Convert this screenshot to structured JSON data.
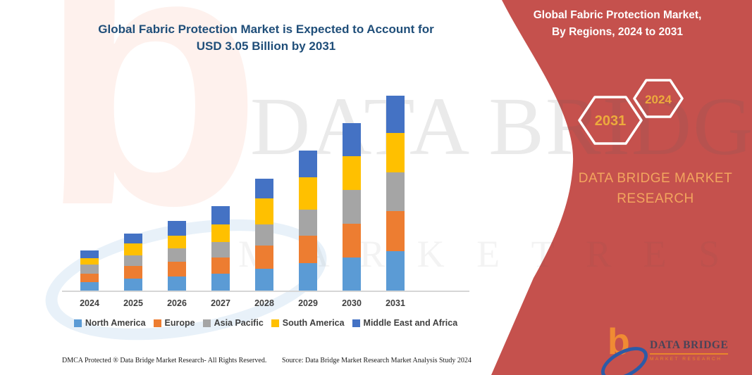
{
  "title": {
    "line1": "Global Fabric Protection Market is Expected to Account for",
    "line2": "USD 3.05 Billion by 2031",
    "color": "#1F4E79"
  },
  "chart_data": {
    "type": "bar",
    "stacked": true,
    "unit": "USD Billion",
    "title": "Global Fabric Protection Market is Expected to Account for USD 3.05 Billion by 2031",
    "xlabel": "",
    "ylabel": "",
    "y_axis_shown": false,
    "grid": false,
    "legend_position": "bottom",
    "categories": [
      "2024",
      "2025",
      "2026",
      "2027",
      "2028",
      "2029",
      "2030",
      "2031"
    ],
    "series": [
      {
        "name": "North America",
        "color": "#5B9BD5",
        "values": [
          0.13,
          0.19,
          0.22,
          0.26,
          0.34,
          0.43,
          0.52,
          0.62
        ]
      },
      {
        "name": "Europe",
        "color": "#ED7D31",
        "values": [
          0.13,
          0.19,
          0.23,
          0.26,
          0.36,
          0.43,
          0.53,
          0.62
        ]
      },
      {
        "name": "Asia Pacific",
        "color": "#A5A5A5",
        "values": [
          0.15,
          0.17,
          0.21,
          0.24,
          0.34,
          0.41,
          0.52,
          0.61
        ]
      },
      {
        "name": "South America",
        "color": "#FFC000",
        "values": [
          0.1,
          0.19,
          0.2,
          0.28,
          0.4,
          0.5,
          0.53,
          0.62
        ]
      },
      {
        "name": "Middle East and Africa",
        "color": "#4472C4",
        "values": [
          0.12,
          0.15,
          0.23,
          0.28,
          0.31,
          0.42,
          0.52,
          0.58
        ]
      }
    ],
    "totals": [
      0.63,
      0.89,
      1.09,
      1.32,
      1.75,
      2.19,
      2.62,
      3.05
    ]
  },
  "side_panel": {
    "bg_color": "#C5514D",
    "heading_line1": "Global Fabric Protection Market,",
    "heading_line2": "By Regions, 2024 to 2031",
    "hex_left_label": "2031",
    "hex_right_label": "2024",
    "hex_label_color": "#EDAA3C",
    "brand_line1": "DATA BRIDGE MARKET",
    "brand_line2": "RESEARCH"
  },
  "watermark": {
    "big_text": "DATA BRIDGE",
    "spaced_text": "M A R K E T   R E S E A R C H",
    "logo_letter": "b"
  },
  "logo": {
    "mark_letter": "b",
    "brand": "DATA BRIDGE",
    "sub": "MARKET RESEARCH"
  },
  "footer": {
    "left": "DMCA Protected ® Data Bridge Market Research-  All Rights Reserved.",
    "right": "Source: Data Bridge Market Research  Market Analysis Study 2024"
  }
}
